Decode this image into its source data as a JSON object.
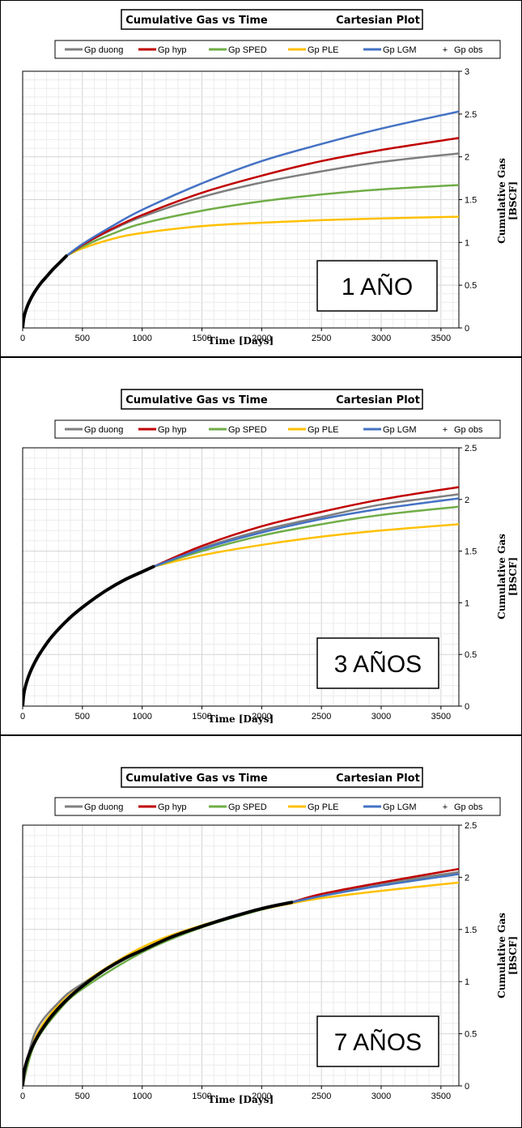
{
  "chart_data": [
    {
      "type": "line",
      "title": "Cumulative Gas vs Time",
      "subtitle": "Cartesian Plot",
      "xlabel": "Time [Days]",
      "ylabel": "Cumulative Gas [BSCF]",
      "annotation": "1 AÑO",
      "xlim": [
        0,
        3650
      ],
      "ylim": [
        0,
        3
      ],
      "xticks": [
        "0",
        "500",
        "1000",
        "1500",
        "2000",
        "2500",
        "3000",
        "3500"
      ],
      "yticks": [
        "0",
        "0.5",
        "1",
        "1.5",
        "2",
        "2.5",
        "3"
      ],
      "grid": true,
      "legend": "top",
      "obs_end": 365,
      "series": [
        {
          "name": "Gp duong",
          "color": "#7f7f7f",
          "x": [
            365,
            500,
            750,
            1000,
            1500,
            2000,
            2500,
            3000,
            3650
          ],
          "values": [
            0.84,
            0.97,
            1.15,
            1.3,
            1.53,
            1.7,
            1.83,
            1.94,
            2.04
          ]
        },
        {
          "name": "Gp hyp",
          "color": "#c00000",
          "x": [
            365,
            500,
            750,
            1000,
            1500,
            2000,
            2500,
            3000,
            3650
          ],
          "values": [
            0.84,
            0.97,
            1.16,
            1.32,
            1.58,
            1.78,
            1.95,
            2.08,
            2.22
          ]
        },
        {
          "name": "Gp SPED",
          "color": "#70ad47",
          "x": [
            365,
            500,
            750,
            1000,
            1500,
            2000,
            2500,
            3000,
            3650
          ],
          "values": [
            0.84,
            0.95,
            1.1,
            1.22,
            1.37,
            1.48,
            1.56,
            1.62,
            1.67
          ]
        },
        {
          "name": "Gp PLE",
          "color": "#ffc000",
          "x": [
            365,
            500,
            750,
            1000,
            1500,
            2000,
            2500,
            3000,
            3650
          ],
          "values": [
            0.84,
            0.93,
            1.04,
            1.11,
            1.19,
            1.23,
            1.26,
            1.28,
            1.3
          ]
        },
        {
          "name": "Gp LGM",
          "color": "#4472c4",
          "x": [
            365,
            500,
            750,
            1000,
            1500,
            2000,
            2500,
            3000,
            3650
          ],
          "values": [
            0.84,
            0.98,
            1.19,
            1.38,
            1.69,
            1.95,
            2.15,
            2.33,
            2.53
          ]
        },
        {
          "name": "Gp obs",
          "color": "#000000",
          "x": [
            0,
            10,
            30,
            60,
            100,
            150,
            200,
            250,
            300,
            365
          ],
          "values": [
            0,
            0.12,
            0.22,
            0.32,
            0.42,
            0.52,
            0.6,
            0.68,
            0.75,
            0.84
          ]
        }
      ]
    },
    {
      "type": "line",
      "title": "Cumulative Gas vs Time",
      "subtitle": "Cartesian Plot",
      "xlabel": "Time [Days]",
      "ylabel": "Cumulative Gas [BSCF]",
      "annotation": "3 AÑOS",
      "xlim": [
        0,
        3650
      ],
      "ylim": [
        0,
        2.5
      ],
      "xticks": [
        "0",
        "500",
        "1000",
        "1500",
        "2000",
        "2500",
        "3000",
        "3500"
      ],
      "yticks": [
        "0",
        "0.5",
        "1",
        "1.5",
        "2",
        "2.5"
      ],
      "grid": true,
      "legend": "top",
      "obs_end": 1095,
      "series": [
        {
          "name": "Gp duong",
          "color": "#7f7f7f",
          "x": [
            1095,
            1500,
            2000,
            2500,
            3000,
            3650
          ],
          "values": [
            1.35,
            1.53,
            1.7,
            1.83,
            1.95,
            2.05
          ]
        },
        {
          "name": "Gp hyp",
          "color": "#c00000",
          "x": [
            1095,
            1500,
            2000,
            2500,
            3000,
            3650
          ],
          "values": [
            1.35,
            1.55,
            1.74,
            1.88,
            2.0,
            2.12
          ]
        },
        {
          "name": "Gp SPED",
          "color": "#70ad47",
          "x": [
            1095,
            1500,
            2000,
            2500,
            3000,
            3650
          ],
          "values": [
            1.35,
            1.5,
            1.65,
            1.76,
            1.85,
            1.93
          ]
        },
        {
          "name": "Gp PLE",
          "color": "#ffc000",
          "x": [
            1095,
            1500,
            2000,
            2500,
            3000,
            3650
          ],
          "values": [
            1.35,
            1.46,
            1.56,
            1.64,
            1.7,
            1.76
          ]
        },
        {
          "name": "Gp LGM",
          "color": "#4472c4",
          "x": [
            1095,
            1500,
            2000,
            2500,
            3000,
            3650
          ],
          "values": [
            1.35,
            1.52,
            1.68,
            1.81,
            1.91,
            2.01
          ]
        },
        {
          "name": "Gp obs",
          "color": "#000000",
          "x": [
            0,
            10,
            30,
            60,
            100,
            150,
            250,
            400,
            550,
            700,
            850,
            1000,
            1095
          ],
          "values": [
            0,
            0.12,
            0.22,
            0.32,
            0.42,
            0.52,
            0.68,
            0.86,
            1.0,
            1.12,
            1.22,
            1.3,
            1.35
          ]
        }
      ]
    },
    {
      "type": "line",
      "title": "Cumulative Gas vs Time",
      "subtitle": "Cartesian Plot",
      "xlabel": "Time [Days]",
      "ylabel": "Cumulative Gas [BSCF]",
      "annotation": "7 AÑOS",
      "xlim": [
        0,
        3650
      ],
      "ylim": [
        0,
        2.5
      ],
      "xticks": [
        "0",
        "500",
        "1000",
        "1500",
        "2000",
        "2500",
        "3000",
        "3500"
      ],
      "yticks": [
        "0",
        "0.5",
        "1",
        "1.5",
        "2",
        "2.5"
      ],
      "grid": true,
      "legend": "top",
      "obs_end": 2250,
      "series": [
        {
          "name": "Gp duong",
          "color": "#7f7f7f",
          "x": [
            0,
            100,
            300,
            500,
            1000,
            1500,
            2000,
            2250,
            2500,
            3000,
            3650
          ],
          "values": [
            0,
            0.5,
            0.8,
            0.98,
            1.3,
            1.53,
            1.7,
            1.76,
            1.83,
            1.94,
            2.05
          ]
        },
        {
          "name": "Gp hyp",
          "color": "#c00000",
          "x": [
            2250,
            2500,
            3000,
            3650
          ],
          "values": [
            1.76,
            1.84,
            1.95,
            2.08
          ]
        },
        {
          "name": "Gp SPED",
          "color": "#70ad47",
          "x": [
            0,
            100,
            300,
            500,
            1000,
            1500,
            2000,
            2250,
            2500,
            3000,
            3650
          ],
          "values": [
            0,
            0.4,
            0.72,
            0.93,
            1.28,
            1.52,
            1.69,
            1.76,
            1.82,
            1.93,
            2.04
          ]
        },
        {
          "name": "Gp PLE",
          "color": "#ffc000",
          "x": [
            0,
            100,
            300,
            500,
            1000,
            1500,
            2000,
            2250,
            2500,
            3000,
            3650
          ],
          "values": [
            0,
            0.45,
            0.78,
            0.98,
            1.33,
            1.54,
            1.69,
            1.75,
            1.8,
            1.87,
            1.95
          ]
        },
        {
          "name": "Gp LGM",
          "color": "#4472c4",
          "x": [
            2250,
            2500,
            3000,
            3650
          ],
          "values": [
            1.76,
            1.82,
            1.92,
            2.03
          ]
        },
        {
          "name": "Gp obs",
          "color": "#000000",
          "x": [
            0,
            10,
            30,
            60,
            100,
            150,
            250,
            400,
            550,
            700,
            850,
            1000,
            1250,
            1500,
            1750,
            2000,
            2250
          ],
          "values": [
            0,
            0.12,
            0.22,
            0.32,
            0.42,
            0.52,
            0.68,
            0.86,
            1.0,
            1.12,
            1.22,
            1.3,
            1.43,
            1.53,
            1.62,
            1.7,
            1.76
          ]
        }
      ]
    }
  ]
}
